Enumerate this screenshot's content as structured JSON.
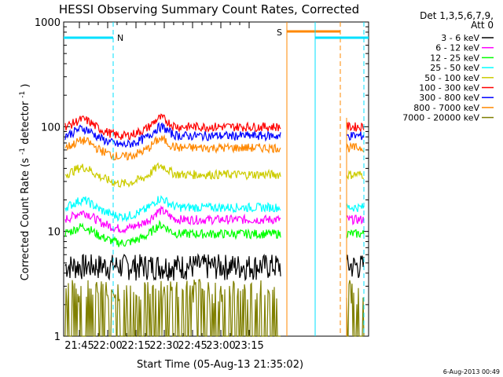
{
  "chart_data": {
    "type": "line",
    "title": "HESSI Observing Summary Count Rates, Corrected",
    "xlabel": "Start Time (05-Aug-13 21:35:02)",
    "ylabel_main": "Corrected Count Rate (s",
    "ylabel_sup1": "-1",
    "ylabel_mid": " detector",
    "ylabel_sup2": "-1",
    "ylabel_end": ")",
    "yscale": "log",
    "ylim": [
      1,
      1000
    ],
    "xlim_minutes": [
      21.6,
      23.26
    ],
    "y_ticks": [
      "1",
      "10",
      "100",
      "1000"
    ],
    "x_ticks": [
      "21:45",
      "22:00",
      "22:15",
      "22:30",
      "22:45",
      "23:00",
      "23:15"
    ],
    "legend_header": [
      "Det 1,3,5,6,7,9,",
      "Att 0"
    ],
    "series": [
      {
        "name": "3 - 6 keV",
        "color": "#000000",
        "level": 4.5
      },
      {
        "name": "6 - 12 keV",
        "color": "#ff00ff",
        "level": 13
      },
      {
        "name": "12 - 25 keV",
        "color": "#00ff00",
        "level": 9.5
      },
      {
        "name": "25 - 50 keV",
        "color": "#00ffff",
        "level": 17
      },
      {
        "name": "50 - 100 keV",
        "color": "#cccc00",
        "level": 35
      },
      {
        "name": "100 - 300 keV",
        "color": "#ff0000",
        "level": 100
      },
      {
        "name": "300 - 800 keV",
        "color": "#0000ff",
        "level": 82
      },
      {
        "name": "800 - 7000 keV",
        "color": "#ff8800",
        "level": 63
      },
      {
        "name": "7000 - 20000 keV",
        "color": "#808000",
        "level": 2
      }
    ],
    "annotations": [
      {
        "label": "N",
        "color": "#00e0ff"
      },
      {
        "label": "S",
        "color": "#ff8800"
      }
    ],
    "footer_date": "6-Aug-2013 00:49"
  }
}
